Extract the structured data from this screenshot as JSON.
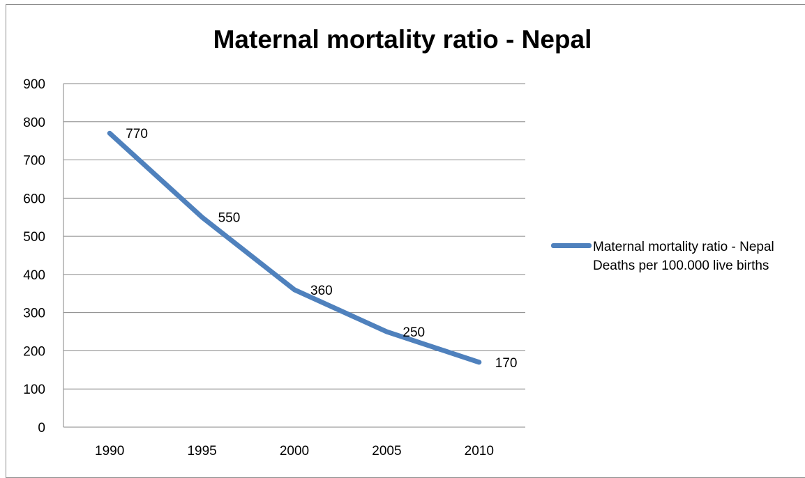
{
  "chart_data": {
    "type": "line",
    "title": "Maternal mortality ratio - Nepal",
    "categories": [
      "1990",
      "1995",
      "2000",
      "2005",
      "2010"
    ],
    "series": [
      {
        "name": "Maternal mortality ratio - Nepal Deaths per 100.000 live births",
        "values": [
          770,
          550,
          360,
          250,
          170
        ],
        "data_labels": [
          "770",
          "550",
          "360",
          "250",
          "170"
        ]
      }
    ],
    "ylim": [
      0,
      900
    ],
    "yticks": [
      "0",
      "100",
      "200",
      "300",
      "400",
      "500",
      "600",
      "700",
      "800",
      "900"
    ],
    "grid": true,
    "legend_position": "right",
    "color": "#4f81bd"
  }
}
